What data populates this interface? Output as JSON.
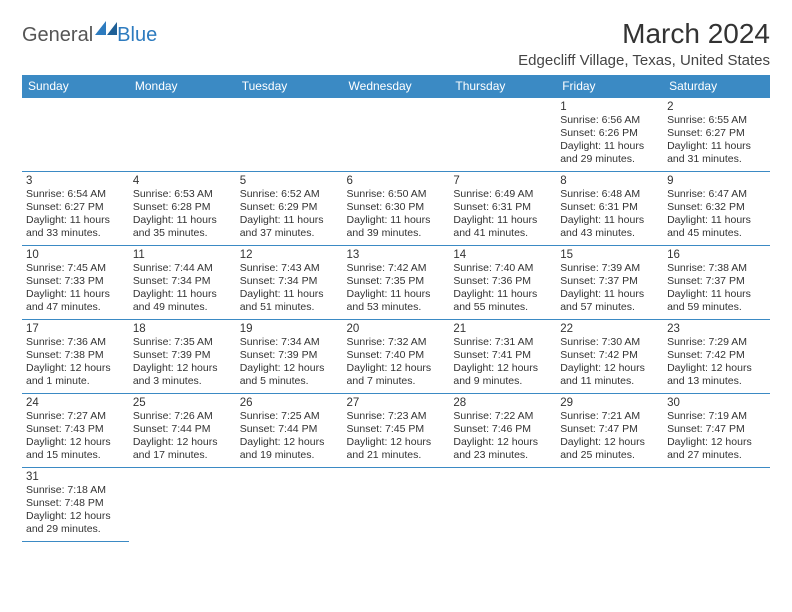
{
  "logo": {
    "text1": "General",
    "text2": "Blue"
  },
  "title": "March 2024",
  "location": "Edgecliff Village, Texas, United States",
  "weekdays": [
    "Sunday",
    "Monday",
    "Tuesday",
    "Wednesday",
    "Thursday",
    "Friday",
    "Saturday"
  ],
  "colors": {
    "header_bg": "#3b8ac4",
    "header_text": "#ffffff",
    "border": "#3b8ac4",
    "text": "#333333",
    "logo_accent": "#2d7bbf"
  },
  "weeks": [
    [
      null,
      null,
      null,
      null,
      null,
      {
        "d": "1",
        "sr": "Sunrise: 6:56 AM",
        "ss": "Sunset: 6:26 PM",
        "dl1": "Daylight: 11 hours",
        "dl2": "and 29 minutes."
      },
      {
        "d": "2",
        "sr": "Sunrise: 6:55 AM",
        "ss": "Sunset: 6:27 PM",
        "dl1": "Daylight: 11 hours",
        "dl2": "and 31 minutes."
      }
    ],
    [
      {
        "d": "3",
        "sr": "Sunrise: 6:54 AM",
        "ss": "Sunset: 6:27 PM",
        "dl1": "Daylight: 11 hours",
        "dl2": "and 33 minutes."
      },
      {
        "d": "4",
        "sr": "Sunrise: 6:53 AM",
        "ss": "Sunset: 6:28 PM",
        "dl1": "Daylight: 11 hours",
        "dl2": "and 35 minutes."
      },
      {
        "d": "5",
        "sr": "Sunrise: 6:52 AM",
        "ss": "Sunset: 6:29 PM",
        "dl1": "Daylight: 11 hours",
        "dl2": "and 37 minutes."
      },
      {
        "d": "6",
        "sr": "Sunrise: 6:50 AM",
        "ss": "Sunset: 6:30 PM",
        "dl1": "Daylight: 11 hours",
        "dl2": "and 39 minutes."
      },
      {
        "d": "7",
        "sr": "Sunrise: 6:49 AM",
        "ss": "Sunset: 6:31 PM",
        "dl1": "Daylight: 11 hours",
        "dl2": "and 41 minutes."
      },
      {
        "d": "8",
        "sr": "Sunrise: 6:48 AM",
        "ss": "Sunset: 6:31 PM",
        "dl1": "Daylight: 11 hours",
        "dl2": "and 43 minutes."
      },
      {
        "d": "9",
        "sr": "Sunrise: 6:47 AM",
        "ss": "Sunset: 6:32 PM",
        "dl1": "Daylight: 11 hours",
        "dl2": "and 45 minutes."
      }
    ],
    [
      {
        "d": "10",
        "sr": "Sunrise: 7:45 AM",
        "ss": "Sunset: 7:33 PM",
        "dl1": "Daylight: 11 hours",
        "dl2": "and 47 minutes."
      },
      {
        "d": "11",
        "sr": "Sunrise: 7:44 AM",
        "ss": "Sunset: 7:34 PM",
        "dl1": "Daylight: 11 hours",
        "dl2": "and 49 minutes."
      },
      {
        "d": "12",
        "sr": "Sunrise: 7:43 AM",
        "ss": "Sunset: 7:34 PM",
        "dl1": "Daylight: 11 hours",
        "dl2": "and 51 minutes."
      },
      {
        "d": "13",
        "sr": "Sunrise: 7:42 AM",
        "ss": "Sunset: 7:35 PM",
        "dl1": "Daylight: 11 hours",
        "dl2": "and 53 minutes."
      },
      {
        "d": "14",
        "sr": "Sunrise: 7:40 AM",
        "ss": "Sunset: 7:36 PM",
        "dl1": "Daylight: 11 hours",
        "dl2": "and 55 minutes."
      },
      {
        "d": "15",
        "sr": "Sunrise: 7:39 AM",
        "ss": "Sunset: 7:37 PM",
        "dl1": "Daylight: 11 hours",
        "dl2": "and 57 minutes."
      },
      {
        "d": "16",
        "sr": "Sunrise: 7:38 AM",
        "ss": "Sunset: 7:37 PM",
        "dl1": "Daylight: 11 hours",
        "dl2": "and 59 minutes."
      }
    ],
    [
      {
        "d": "17",
        "sr": "Sunrise: 7:36 AM",
        "ss": "Sunset: 7:38 PM",
        "dl1": "Daylight: 12 hours",
        "dl2": "and 1 minute."
      },
      {
        "d": "18",
        "sr": "Sunrise: 7:35 AM",
        "ss": "Sunset: 7:39 PM",
        "dl1": "Daylight: 12 hours",
        "dl2": "and 3 minutes."
      },
      {
        "d": "19",
        "sr": "Sunrise: 7:34 AM",
        "ss": "Sunset: 7:39 PM",
        "dl1": "Daylight: 12 hours",
        "dl2": "and 5 minutes."
      },
      {
        "d": "20",
        "sr": "Sunrise: 7:32 AM",
        "ss": "Sunset: 7:40 PM",
        "dl1": "Daylight: 12 hours",
        "dl2": "and 7 minutes."
      },
      {
        "d": "21",
        "sr": "Sunrise: 7:31 AM",
        "ss": "Sunset: 7:41 PM",
        "dl1": "Daylight: 12 hours",
        "dl2": "and 9 minutes."
      },
      {
        "d": "22",
        "sr": "Sunrise: 7:30 AM",
        "ss": "Sunset: 7:42 PM",
        "dl1": "Daylight: 12 hours",
        "dl2": "and 11 minutes."
      },
      {
        "d": "23",
        "sr": "Sunrise: 7:29 AM",
        "ss": "Sunset: 7:42 PM",
        "dl1": "Daylight: 12 hours",
        "dl2": "and 13 minutes."
      }
    ],
    [
      {
        "d": "24",
        "sr": "Sunrise: 7:27 AM",
        "ss": "Sunset: 7:43 PM",
        "dl1": "Daylight: 12 hours",
        "dl2": "and 15 minutes."
      },
      {
        "d": "25",
        "sr": "Sunrise: 7:26 AM",
        "ss": "Sunset: 7:44 PM",
        "dl1": "Daylight: 12 hours",
        "dl2": "and 17 minutes."
      },
      {
        "d": "26",
        "sr": "Sunrise: 7:25 AM",
        "ss": "Sunset: 7:44 PM",
        "dl1": "Daylight: 12 hours",
        "dl2": "and 19 minutes."
      },
      {
        "d": "27",
        "sr": "Sunrise: 7:23 AM",
        "ss": "Sunset: 7:45 PM",
        "dl1": "Daylight: 12 hours",
        "dl2": "and 21 minutes."
      },
      {
        "d": "28",
        "sr": "Sunrise: 7:22 AM",
        "ss": "Sunset: 7:46 PM",
        "dl1": "Daylight: 12 hours",
        "dl2": "and 23 minutes."
      },
      {
        "d": "29",
        "sr": "Sunrise: 7:21 AM",
        "ss": "Sunset: 7:47 PM",
        "dl1": "Daylight: 12 hours",
        "dl2": "and 25 minutes."
      },
      {
        "d": "30",
        "sr": "Sunrise: 7:19 AM",
        "ss": "Sunset: 7:47 PM",
        "dl1": "Daylight: 12 hours",
        "dl2": "and 27 minutes."
      }
    ],
    [
      {
        "d": "31",
        "sr": "Sunrise: 7:18 AM",
        "ss": "Sunset: 7:48 PM",
        "dl1": "Daylight: 12 hours",
        "dl2": "and 29 minutes."
      },
      null,
      null,
      null,
      null,
      null,
      null
    ]
  ]
}
